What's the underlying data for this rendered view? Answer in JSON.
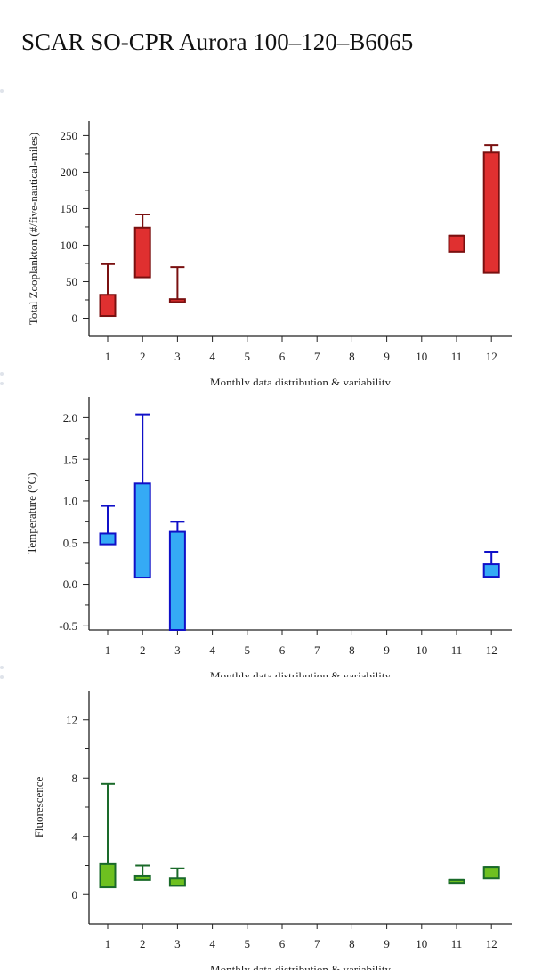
{
  "page": {
    "title": "SCAR SO-CPR Aurora 100–120–B6065"
  },
  "chart_data": [
    {
      "type": "box",
      "ylabel": "Total Zooplankton (#/five-nautical-miles)",
      "xlabel": "Monthly data distribution & variability",
      "categories": [
        "1",
        "2",
        "3",
        "4",
        "5",
        "6",
        "7",
        "8",
        "9",
        "10",
        "11",
        "12"
      ],
      "ylim": [
        -25,
        270
      ],
      "yticks": [
        0,
        50,
        100,
        150,
        200,
        250
      ],
      "colors": {
        "fill": "#e03030",
        "stroke": "#7a1010"
      },
      "boxes": [
        {
          "x": "1",
          "q1": 3,
          "q3": 32,
          "whisker_high": 74
        },
        {
          "x": "2",
          "q1": 56,
          "q3": 124,
          "whisker_high": 142
        },
        {
          "x": "3",
          "q1": 22,
          "q3": 26,
          "whisker_high": 70
        },
        {
          "x": "11",
          "q1": 91,
          "q3": 113,
          "whisker_high": 113
        },
        {
          "x": "12",
          "q1": 62,
          "q3": 227,
          "whisker_high": 237
        }
      ]
    },
    {
      "type": "box",
      "ylabel": "Temperature (°C)",
      "xlabel": "Monthly data distribution & variability",
      "categories": [
        "1",
        "2",
        "3",
        "4",
        "5",
        "6",
        "7",
        "8",
        "9",
        "10",
        "11",
        "12"
      ],
      "ylim": [
        -0.55,
        2.25
      ],
      "yticks": [
        -0.5,
        0.0,
        0.5,
        1.0,
        1.5,
        2.0
      ],
      "ytick_labels": [
        "-0.5",
        "0.0",
        "0.5",
        "1.0",
        "1.5",
        "2.0"
      ],
      "colors": {
        "fill": "#35aaf5",
        "stroke": "#1010c8"
      },
      "boxes": [
        {
          "x": "1",
          "q1": 0.48,
          "q3": 0.61,
          "whisker_high": 0.94
        },
        {
          "x": "2",
          "q1": 0.08,
          "q3": 1.21,
          "whisker_high": 2.04
        },
        {
          "x": "3",
          "q1": -0.55,
          "q3": 0.63,
          "whisker_high": 0.75
        },
        {
          "x": "12",
          "q1": 0.09,
          "q3": 0.24,
          "whisker_high": 0.39
        }
      ]
    },
    {
      "type": "box",
      "ylabel": "Fluorescence",
      "xlabel": "Monthly data distribution & variability",
      "categories": [
        "1",
        "2",
        "3",
        "4",
        "5",
        "6",
        "7",
        "8",
        "9",
        "10",
        "11",
        "12"
      ],
      "ylim": [
        -2,
        14
      ],
      "yticks": [
        0,
        4,
        8,
        12
      ],
      "colors": {
        "fill": "#6ec020",
        "stroke": "#1a6a2a"
      },
      "boxes": [
        {
          "x": "1",
          "q1": 0.5,
          "q3": 2.1,
          "whisker_high": 7.6
        },
        {
          "x": "2",
          "q1": 1.0,
          "q3": 1.3,
          "whisker_high": 2.0
        },
        {
          "x": "3",
          "q1": 0.6,
          "q3": 1.1,
          "whisker_high": 1.8
        },
        {
          "x": "11",
          "q1": 0.8,
          "q3": 1.0,
          "whisker_high": 1.0
        },
        {
          "x": "12",
          "q1": 1.1,
          "q3": 1.9,
          "whisker_high": 1.9
        }
      ]
    }
  ]
}
